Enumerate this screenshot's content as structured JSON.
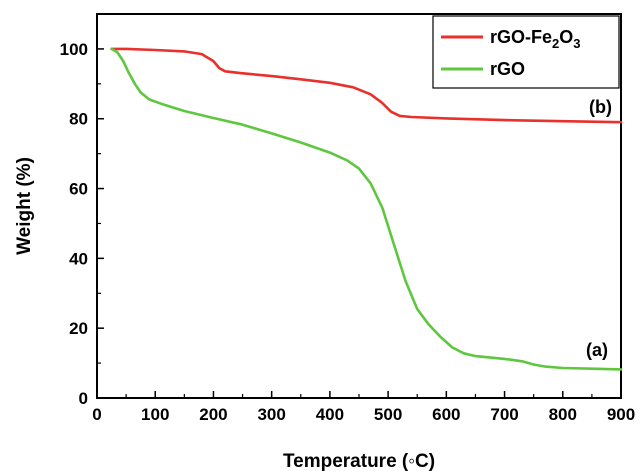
{
  "chart_data": {
    "type": "line",
    "xlabel": "Temperature (◦C)",
    "ylabel": "Weight  (%)",
    "xlim": [
      0,
      900
    ],
    "ylim": [
      0,
      110
    ],
    "x_ticks": [
      0,
      100,
      200,
      300,
      400,
      500,
      600,
      700,
      800,
      900
    ],
    "y_ticks": [
      0,
      20,
      40,
      60,
      80,
      100
    ],
    "grid": false,
    "legend_position": "top-right",
    "legend": [
      {
        "label_main": "rGO-Fe",
        "sub1": "2",
        "mid": "O",
        "sub2": "3",
        "color": "#e8302c"
      },
      {
        "label_main": "rGO",
        "color": "#5ec73f"
      }
    ],
    "series": [
      {
        "name": "rGO-Fe2O3",
        "color": "#e8302c",
        "annotation": "(b)",
        "x": [
          25,
          50,
          100,
          150,
          180,
          200,
          210,
          220,
          250,
          300,
          350,
          400,
          440,
          470,
          490,
          505,
          520,
          540,
          600,
          700,
          800,
          900
        ],
        "y": [
          100,
          100,
          99.7,
          99.3,
          98.5,
          96.5,
          94.5,
          93.6,
          93.0,
          92.2,
          91.3,
          90.3,
          89.0,
          87.0,
          84.5,
          82.0,
          80.8,
          80.5,
          80.1,
          79.6,
          79.3,
          79.0
        ]
      },
      {
        "name": "rGO",
        "color": "#5ec73f",
        "annotation": "(a)",
        "x": [
          25,
          35,
          45,
          55,
          65,
          75,
          90,
          110,
          150,
          200,
          250,
          300,
          350,
          400,
          430,
          450,
          470,
          490,
          510,
          530,
          550,
          570,
          590,
          610,
          630,
          650,
          700,
          730,
          750,
          770,
          800,
          850,
          900
        ],
        "y": [
          100,
          99,
          96.5,
          93,
          90,
          87.5,
          85.5,
          84.3,
          82.2,
          80.2,
          78.3,
          75.8,
          73.2,
          70.3,
          68.0,
          65.7,
          61.5,
          54.5,
          44.0,
          33.5,
          25.5,
          21.0,
          17.5,
          14.5,
          12.8,
          12.0,
          11.2,
          10.5,
          9.6,
          9.0,
          8.6,
          8.4,
          8.2
        ]
      }
    ]
  }
}
